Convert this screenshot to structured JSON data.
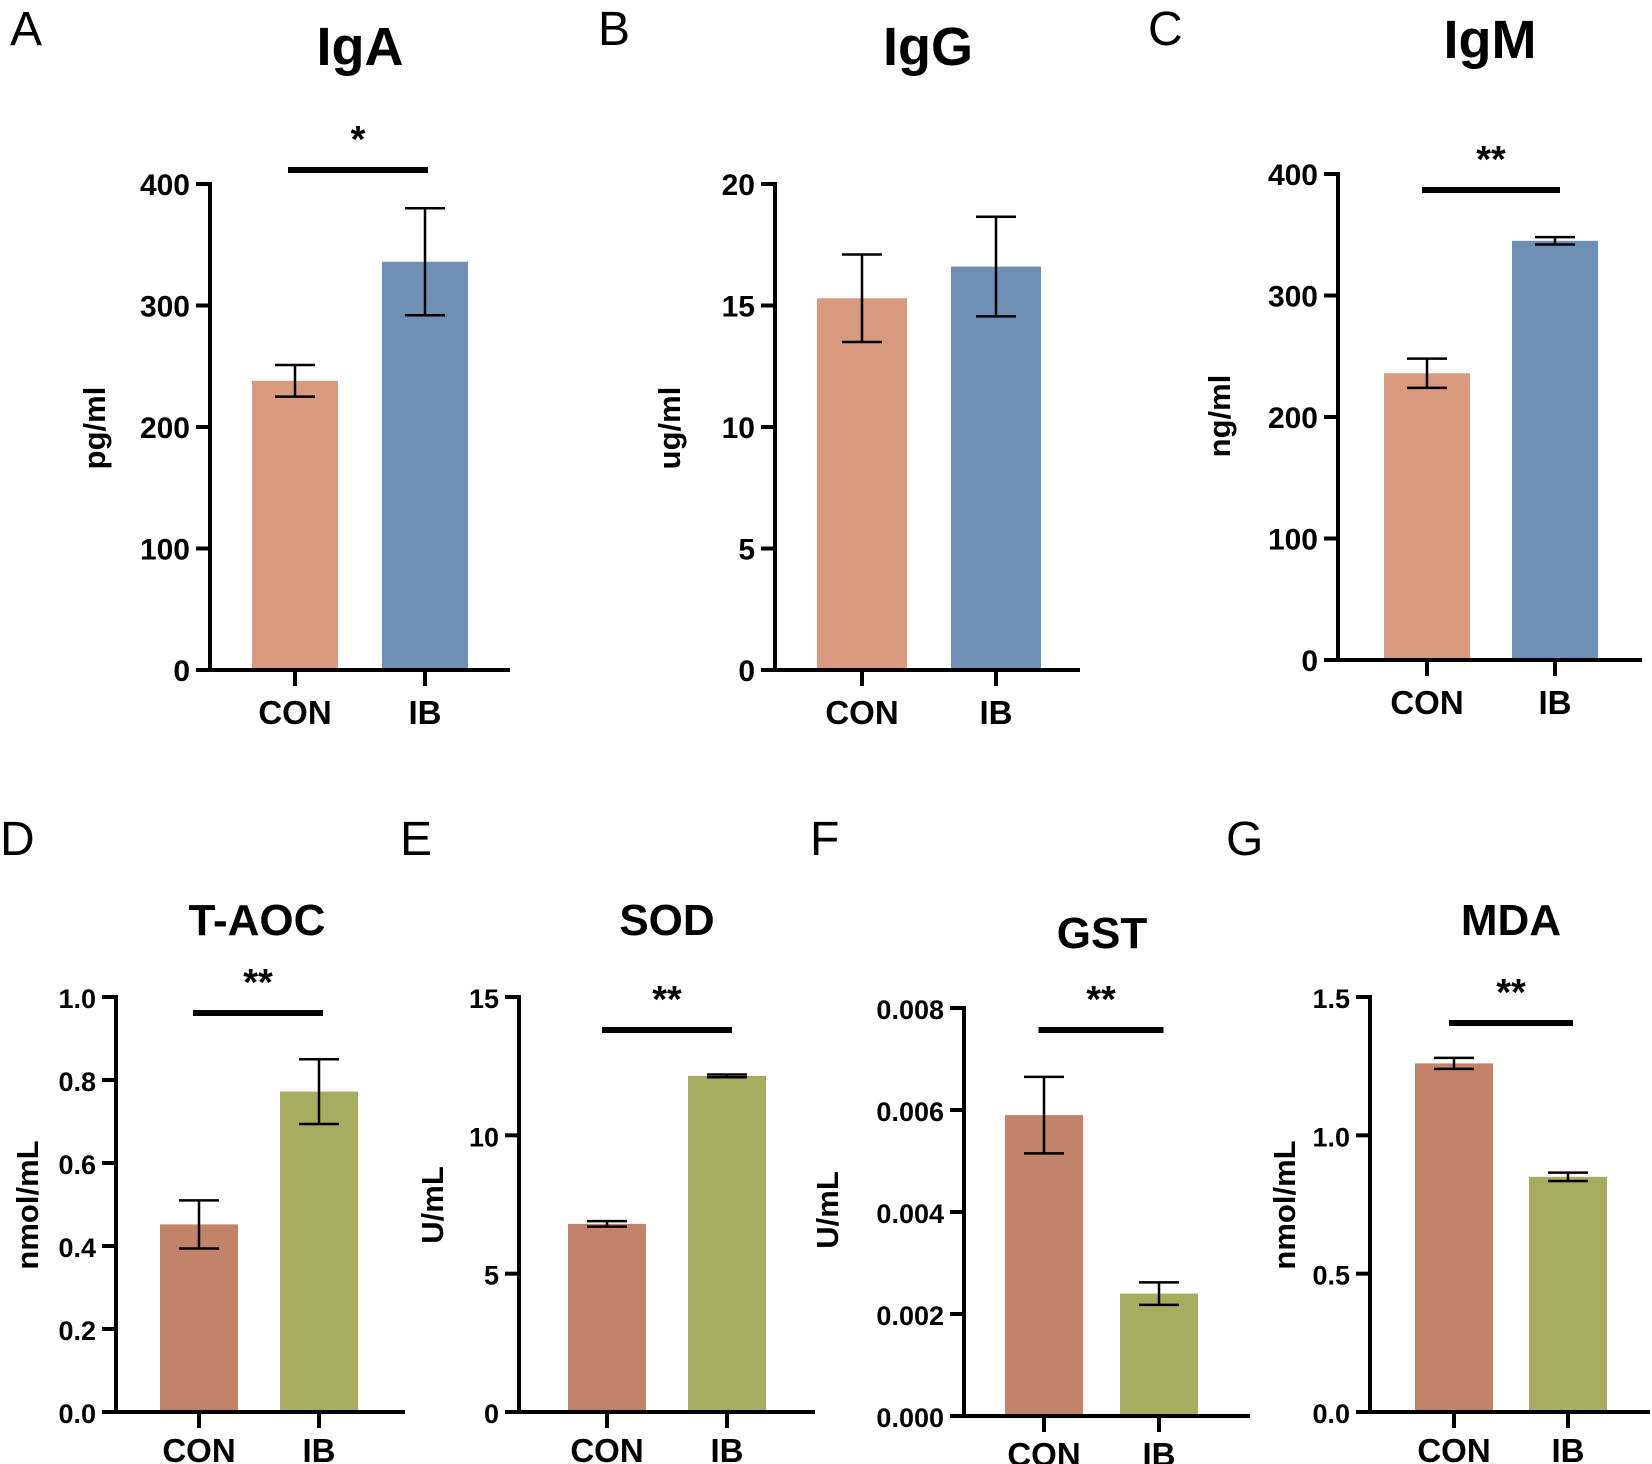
{
  "colors": {
    "top_con": "#d99a80",
    "top_ib": "#6e8fb6",
    "bottom_con": "#c3836b",
    "bottom_ib": "#a5ad5f",
    "axis": "#000000"
  },
  "chart_data": [
    {
      "panel": "A",
      "type": "bar",
      "title": "IgA",
      "ylabel": "pg/ml",
      "categories": [
        "CON",
        "IB"
      ],
      "values": [
        238,
        336
      ],
      "errors": [
        13,
        44
      ],
      "ylim": [
        0,
        400
      ],
      "ticks": [
        0,
        100,
        200,
        300,
        400
      ],
      "tick_labels": [
        "0",
        "100",
        "200",
        "300",
        "400"
      ],
      "significance": "*"
    },
    {
      "panel": "B",
      "type": "bar",
      "title": "IgG",
      "ylabel": "ug/ml",
      "categories": [
        "CON",
        "IB"
      ],
      "values": [
        15.3,
        16.6
      ],
      "errors": [
        1.8,
        2.05
      ],
      "ylim": [
        0,
        20
      ],
      "ticks": [
        0,
        5,
        10,
        15,
        20
      ],
      "tick_labels": [
        "0",
        "5",
        "10",
        "15",
        "20"
      ],
      "significance": ""
    },
    {
      "panel": "C",
      "type": "bar",
      "title": "IgM",
      "ylabel": "ng/ml",
      "categories": [
        "CON",
        "IB"
      ],
      "values": [
        236,
        345
      ],
      "errors": [
        12,
        3
      ],
      "ylim": [
        0,
        400
      ],
      "ticks": [
        0,
        100,
        200,
        300,
        400
      ],
      "tick_labels": [
        "0",
        "100",
        "200",
        "300",
        "400"
      ],
      "significance": "**"
    },
    {
      "panel": "D",
      "type": "bar",
      "title": "T-AOC",
      "ylabel": "nmol/mL",
      "categories": [
        "CON",
        "IB"
      ],
      "values": [
        0.452,
        0.772
      ],
      "errors": [
        0.058,
        0.078
      ],
      "ylim": [
        0,
        1.0
      ],
      "ticks": [
        0,
        0.2,
        0.4,
        0.6,
        0.8,
        1.0
      ],
      "tick_labels": [
        "0.0",
        "0.2",
        "0.4",
        "0.6",
        "0.8",
        "1.0"
      ],
      "significance": "**"
    },
    {
      "panel": "E",
      "type": "bar",
      "title": "SOD",
      "ylabel": "U/mL",
      "categories": [
        "CON",
        "IB"
      ],
      "values": [
        6.8,
        12.15
      ],
      "errors": [
        0.1,
        0.05
      ],
      "ylim": [
        0,
        15
      ],
      "ticks": [
        0,
        5,
        10,
        15
      ],
      "tick_labels": [
        "0",
        "5",
        "10",
        "15"
      ],
      "significance": "**"
    },
    {
      "panel": "F",
      "type": "bar",
      "title": "GST",
      "ylabel": "U/mL",
      "categories": [
        "CON",
        "IB"
      ],
      "values": [
        0.0059,
        0.0024
      ],
      "errors": [
        0.00075,
        0.00022
      ],
      "ylim": [
        0,
        0.008
      ],
      "ticks": [
        0,
        0.002,
        0.004,
        0.006,
        0.008
      ],
      "tick_labels": [
        "0.000",
        "0.002",
        "0.004",
        "0.006",
        "0.008"
      ],
      "significance": "**"
    },
    {
      "panel": "G",
      "type": "bar",
      "title": "MDA",
      "ylabel": "nmol/mL",
      "categories": [
        "CON",
        "IB"
      ],
      "values": [
        1.26,
        0.85
      ],
      "errors": [
        0.02,
        0.015
      ],
      "ylim": [
        0,
        1.5
      ],
      "ticks": [
        0,
        0.5,
        1.0,
        1.5
      ],
      "tick_labels": [
        "0.0",
        "0.5",
        "1.0",
        "1.5"
      ],
      "significance": "**"
    }
  ]
}
